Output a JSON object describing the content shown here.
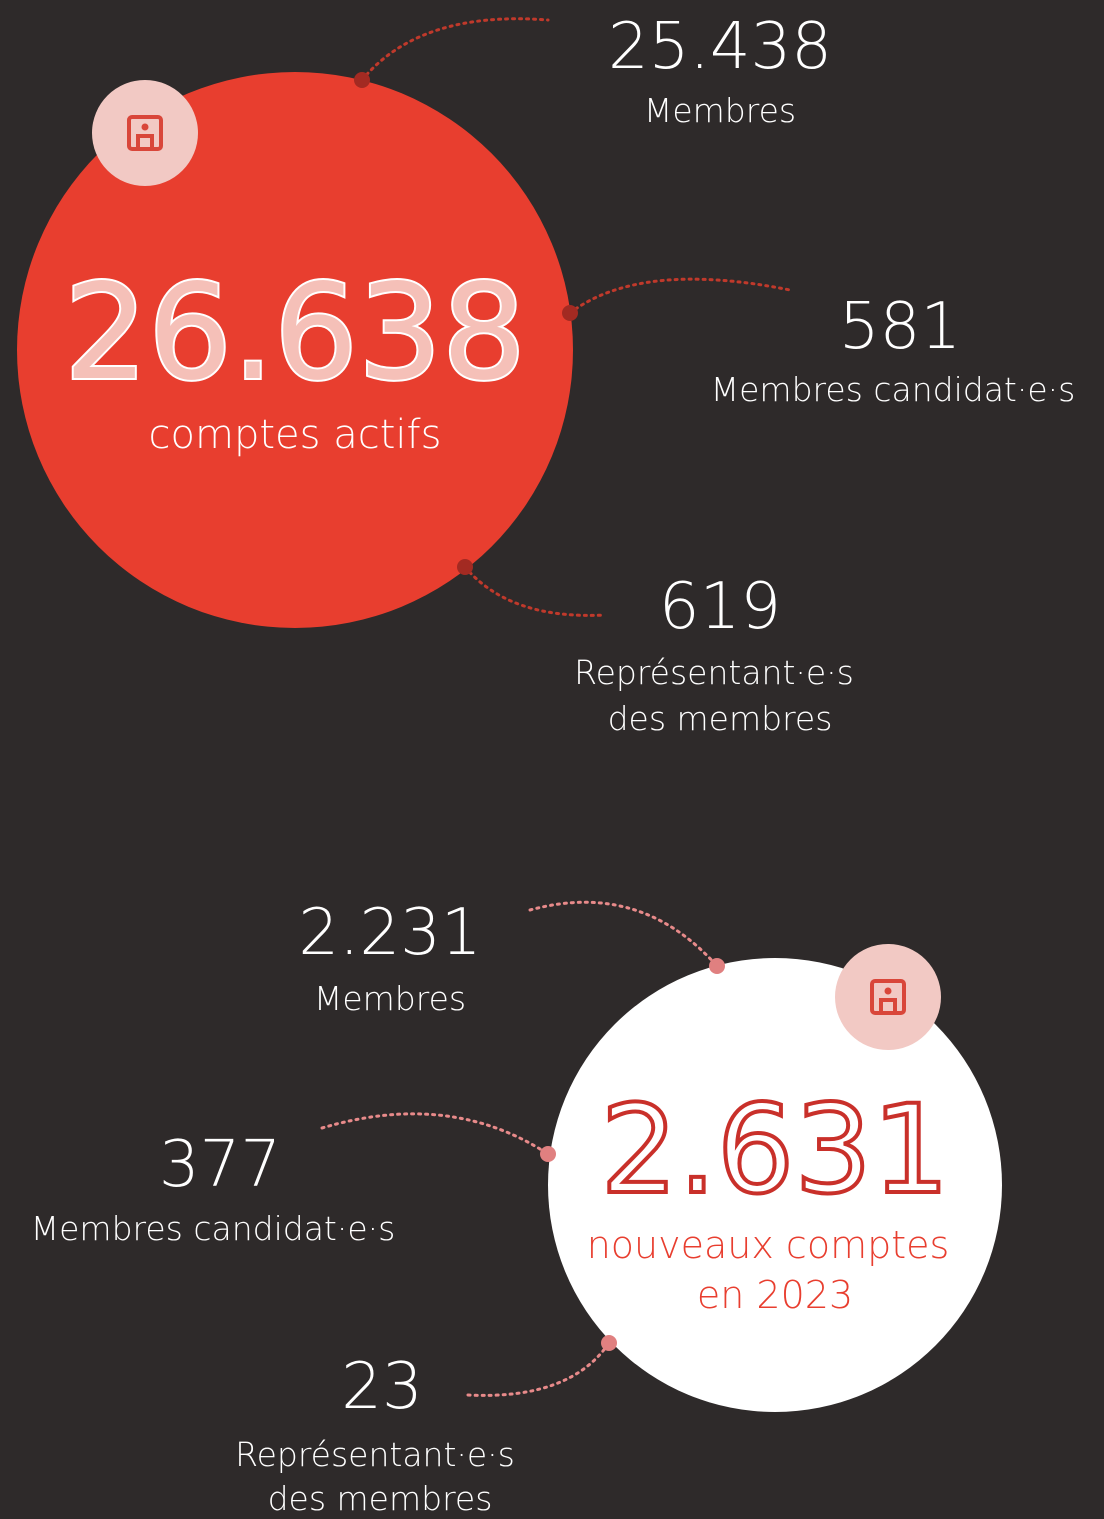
{
  "sections": [
    {
      "total": "26.638",
      "label_lines": [
        "comptes actifs"
      ],
      "items": [
        {
          "value": "25.438",
          "label_lines": [
            "Membres"
          ]
        },
        {
          "value": "581",
          "label_lines": [
            "Membres candidat·e·s"
          ]
        },
        {
          "value": "619",
          "label_lines": [
            "Représentant·e·s",
            "des membres"
          ]
        }
      ]
    },
    {
      "total": "2.631",
      "label_lines": [
        "nouveaux comptes",
        "en 2023"
      ],
      "items": [
        {
          "value": "2.231",
          "label_lines": [
            "Membres"
          ]
        },
        {
          "value": "377",
          "label_lines": [
            "Membres candidat·e·s"
          ]
        },
        {
          "value": "23",
          "label_lines": [
            "Représentant·e·s",
            "des membres"
          ]
        }
      ]
    }
  ]
}
